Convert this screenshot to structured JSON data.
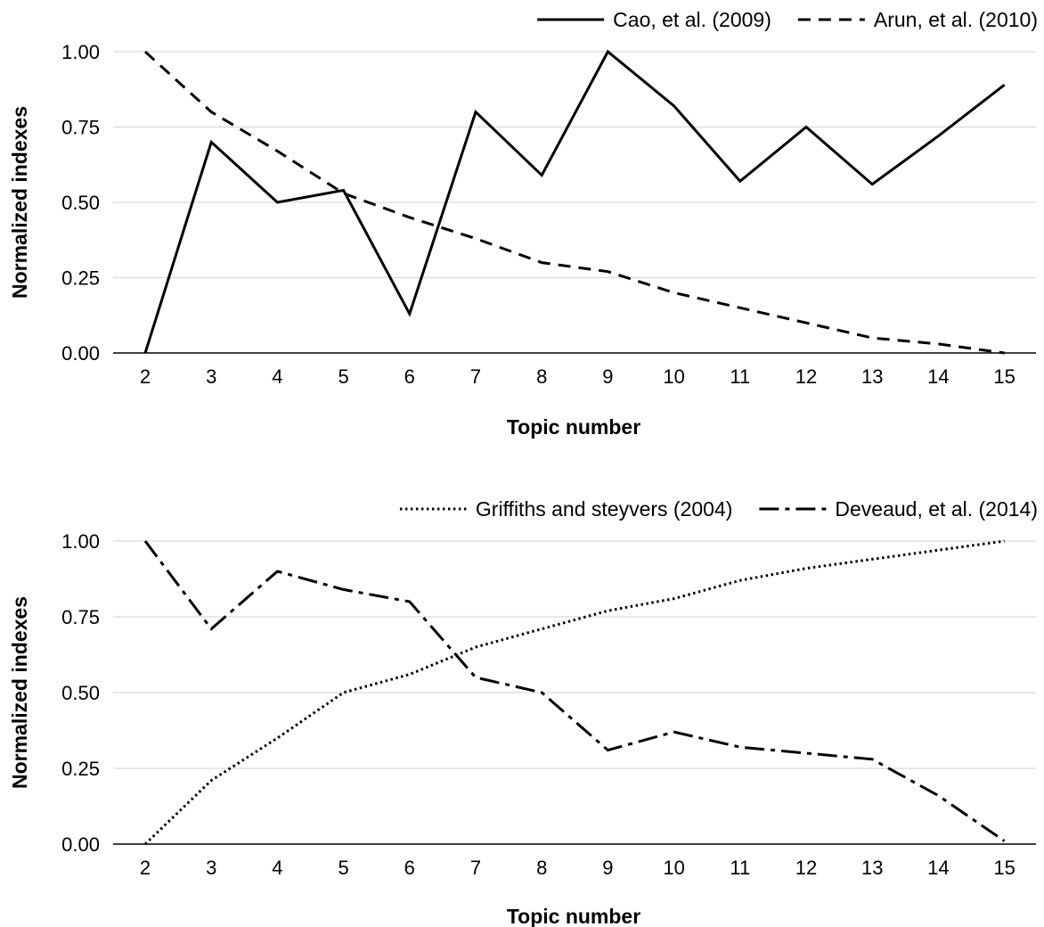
{
  "chart_data": [
    {
      "type": "line",
      "title": "",
      "xlabel": "Topic number",
      "ylabel": "Normalized indexes",
      "x": [
        2,
        3,
        4,
        5,
        6,
        7,
        8,
        9,
        10,
        11,
        12,
        13,
        14,
        15
      ],
      "xticks": [
        "2",
        "3",
        "4",
        "5",
        "6",
        "7",
        "8",
        "9",
        "10",
        "11",
        "12",
        "13",
        "14",
        "15"
      ],
      "yticks": [
        "0.00",
        "0.25",
        "0.50",
        "0.75",
        "1.00"
      ],
      "ylim": [
        0,
        1
      ],
      "grid": "horizontal",
      "legend_position": "top-right",
      "series": [
        {
          "name": "Cao, et al. (2009)",
          "style": "solid",
          "values": [
            0.0,
            0.7,
            0.5,
            0.54,
            0.13,
            0.8,
            0.59,
            1.0,
            0.82,
            0.57,
            0.75,
            0.56,
            0.72,
            0.89
          ]
        },
        {
          "name": "Arun, et al. (2010)",
          "style": "dashed",
          "values": [
            1.0,
            0.8,
            0.67,
            0.53,
            0.45,
            0.38,
            0.3,
            0.27,
            0.2,
            0.15,
            0.1,
            0.05,
            0.03,
            0.0
          ]
        }
      ]
    },
    {
      "type": "line",
      "title": "",
      "xlabel": "Topic number",
      "ylabel": "Normalized indexes",
      "x": [
        2,
        3,
        4,
        5,
        6,
        7,
        8,
        9,
        10,
        11,
        12,
        13,
        14,
        15
      ],
      "xticks": [
        "2",
        "3",
        "4",
        "5",
        "6",
        "7",
        "8",
        "9",
        "10",
        "11",
        "12",
        "13",
        "14",
        "15"
      ],
      "yticks": [
        "0.00",
        "0.25",
        "0.50",
        "0.75",
        "1.00"
      ],
      "ylim": [
        0,
        1
      ],
      "grid": "horizontal",
      "legend_position": "top-right",
      "series": [
        {
          "name": "Griffiths and steyvers (2004)",
          "style": "dotted",
          "values": [
            0.0,
            0.21,
            0.35,
            0.5,
            0.56,
            0.65,
            0.71,
            0.77,
            0.81,
            0.87,
            0.91,
            0.94,
            0.97,
            1.0
          ]
        },
        {
          "name": "Deveaud, et al. (2014)",
          "style": "dashdot",
          "values": [
            1.0,
            0.71,
            0.9,
            0.84,
            0.8,
            0.55,
            0.5,
            0.31,
            0.37,
            0.32,
            0.3,
            0.28,
            0.16,
            0.01
          ]
        }
      ]
    }
  ]
}
